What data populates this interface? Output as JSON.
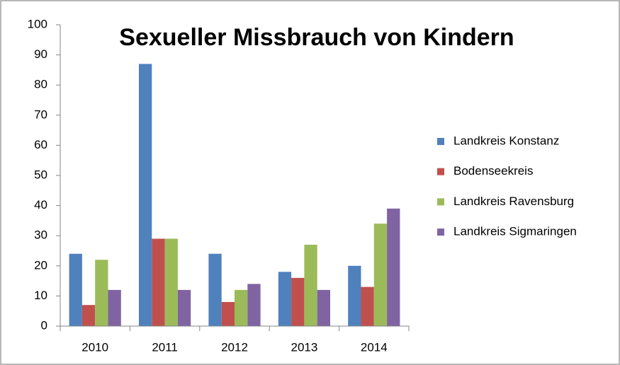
{
  "chart_data": {
    "type": "bar",
    "title": "Sexueller Missbrauch von Kindern",
    "categories": [
      "2010",
      "2011",
      "2012",
      "2013",
      "2014"
    ],
    "series": [
      {
        "name": "Landkreis Konstanz",
        "color": "#4f81bd",
        "values": [
          24,
          87,
          24,
          18,
          20
        ]
      },
      {
        "name": "Bodenseekreis",
        "color": "#c0504d",
        "values": [
          7,
          29,
          8,
          16,
          13
        ]
      },
      {
        "name": "Landkreis Ravensburg",
        "color": "#9bbb59",
        "values": [
          22,
          29,
          12,
          27,
          34
        ]
      },
      {
        "name": "Landkreis Sigmaringen",
        "color": "#8064a2",
        "values": [
          12,
          12,
          14,
          12,
          39
        ]
      }
    ],
    "ylim": [
      0,
      100
    ],
    "yticks": [
      0,
      10,
      20,
      30,
      40,
      50,
      60,
      70,
      80,
      90,
      100
    ],
    "grid": false,
    "legend": "right"
  }
}
